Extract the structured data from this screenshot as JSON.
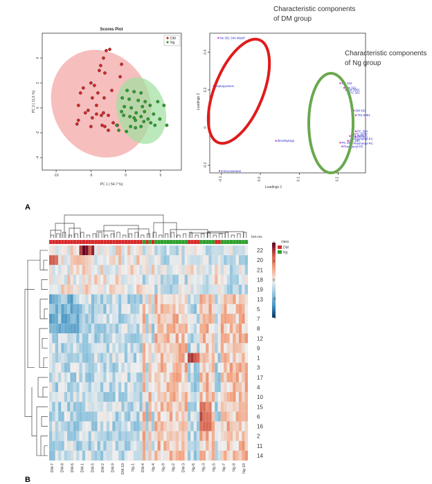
{
  "panel_labels": [
    "A",
    "B"
  ],
  "annotations": {
    "dm_group": [
      "Characteristic components",
      "of DM group"
    ],
    "ng_group": [
      "Characteristic components",
      "of Ng group"
    ]
  },
  "colors": {
    "dm": "#d62728",
    "ng": "#2ca02c",
    "ellipse_dm": "#f4a3a3",
    "ellipse_ng": "#9ee09e",
    "loading_point": "#cc33cc",
    "loading_text": "#2a2ad0",
    "circle_dm": "#e01b1b",
    "circle_ng": "#6aa84f"
  },
  "chart_data": [
    {
      "type": "scatter",
      "title": "Scores Plot",
      "xlabel": "PC 1 ( 54.7 %)",
      "ylabel": "PC 2 ( 11.6 %)",
      "xlim": [
        -12,
        8
      ],
      "ylim": [
        -5,
        6
      ],
      "xticks": [
        -10,
        -5,
        0,
        5
      ],
      "yticks": [
        -4,
        -2,
        0,
        2,
        4
      ],
      "legend": {
        "placement": "top-right",
        "entries": [
          "DM",
          "Ng"
        ]
      },
      "series": [
        {
          "name": "DM",
          "points": [
            [
              -2.8,
              4.6
            ],
            [
              -2.3,
              4.7
            ],
            [
              -3.2,
              4.0
            ],
            [
              -0.6,
              3.5
            ],
            [
              -3.6,
              3.4
            ],
            [
              -3.8,
              3.0
            ],
            [
              -3.0,
              2.8
            ],
            [
              -0.8,
              2.5
            ],
            [
              -5.0,
              2.0
            ],
            [
              -4.5,
              1.8
            ],
            [
              -6.1,
              1.6
            ],
            [
              -6.5,
              1.2
            ],
            [
              -4.0,
              1.2
            ],
            [
              -2.0,
              1.4
            ],
            [
              -3.1,
              0.8
            ],
            [
              -4.8,
              0.8
            ],
            [
              -6.8,
              0.2
            ],
            [
              -4.2,
              0.2
            ],
            [
              -5.4,
              -0.2
            ],
            [
              -4.2,
              -0.5
            ],
            [
              -5.8,
              -0.4
            ],
            [
              -4.8,
              -0.8
            ],
            [
              -2.5,
              -0.6
            ],
            [
              -3.5,
              -0.6
            ],
            [
              -3.2,
              -0.4
            ],
            [
              -6.8,
              -1.0
            ],
            [
              -7.0,
              -1.3
            ],
            [
              -5.0,
              -1.5
            ],
            [
              -3.0,
              -1.5
            ],
            [
              -3.4,
              -1.4
            ],
            [
              -1.8,
              -1.2
            ],
            [
              -1.2,
              -1.4
            ],
            [
              -2.5,
              -1.8
            ]
          ]
        },
        {
          "name": "Ng",
          "points": [
            [
              0.2,
              1.4
            ],
            [
              1.2,
              1.3
            ],
            [
              2.2,
              1.2
            ],
            [
              -0.5,
              0.8
            ],
            [
              0.5,
              0.7
            ],
            [
              1.8,
              0.6
            ],
            [
              2.8,
              0.5
            ],
            [
              4.6,
              0.5
            ],
            [
              -0.2,
              0.1
            ],
            [
              0.8,
              0.0
            ],
            [
              2.4,
              0.1
            ],
            [
              3.5,
              0.2
            ],
            [
              5.5,
              0.2
            ],
            [
              -0.6,
              -0.3
            ],
            [
              1.5,
              -0.4
            ],
            [
              2.7,
              -0.3
            ],
            [
              4.0,
              -0.5
            ],
            [
              -0.3,
              -0.6
            ],
            [
              0.6,
              -0.7
            ],
            [
              1.2,
              -0.8
            ],
            [
              2.2,
              -0.7
            ],
            [
              3.2,
              -0.9
            ],
            [
              4.9,
              -0.9
            ],
            [
              1.4,
              -1.0
            ],
            [
              2.6,
              -1.1
            ],
            [
              3.6,
              -1.2
            ],
            [
              4.2,
              -1.4
            ],
            [
              5.9,
              -1.4
            ],
            [
              0.7,
              -1.5
            ],
            [
              1.4,
              -1.6
            ],
            [
              2.2,
              -1.5
            ],
            [
              0.1,
              -1.9
            ],
            [
              -1.3,
              -1.4
            ],
            [
              -1.0,
              -1.8
            ]
          ]
        }
      ]
    },
    {
      "type": "scatter",
      "title": "",
      "xlabel": "Loadings 1",
      "ylabel": "Loadings 2",
      "xlim": [
        -0.13,
        0.27
      ],
      "ylim": [
        -0.24,
        0.5
      ],
      "xticks": [
        -0.1,
        0.0,
        0.1,
        0.2
      ],
      "xtick_labels": [
        "-0.1",
        "0.0",
        "0.1",
        "0.2"
      ],
      "yticks": [
        -0.2,
        0.0,
        0.2,
        0.4
      ],
      "points": [
        {
          "x": -0.108,
          "y": 0.475,
          "label": "Ne 301 344 MissP"
        },
        {
          "x": -0.12,
          "y": 0.22,
          "label": "heptopyranos"
        },
        {
          "x": 0.04,
          "y": -0.07,
          "label": "dimethylargi"
        },
        {
          "x": -0.105,
          "y": -0.23,
          "label": "6-Docosenami"
        },
        {
          "x": 0.205,
          "y": 0.235,
          "label": "PC 342"
        },
        {
          "x": 0.215,
          "y": 0.21,
          "label": "SM 321"
        },
        {
          "x": 0.22,
          "y": 0.2,
          "label": "SM 3901"
        },
        {
          "x": 0.225,
          "y": 0.185,
          "label": "PC 301"
        },
        {
          "x": 0.24,
          "y": 0.09,
          "label": "SM 402"
        },
        {
          "x": 0.245,
          "y": 0.065,
          "label": "761.5961"
        },
        {
          "x": 0.245,
          "y": -0.02,
          "label": "PC 364"
        },
        {
          "x": 0.24,
          "y": -0.035,
          "label": "PC 6560"
        },
        {
          "x": 0.23,
          "y": -0.045,
          "label": "SM 2008"
        },
        {
          "x": 0.245,
          "y": -0.05,
          "label": "PC 362"
        },
        {
          "x": 0.235,
          "y": -0.06,
          "label": "Plasmenyl-PC"
        },
        {
          "x": 0.225,
          "y": -0.07,
          "label": "PC 181"
        },
        {
          "x": 0.205,
          "y": -0.08,
          "label": "PC 368"
        },
        {
          "x": 0.235,
          "y": -0.085,
          "label": "Plasmenyl-PC"
        },
        {
          "x": 0.21,
          "y": -0.1,
          "label": "Plasmenyl-PE"
        }
      ]
    },
    {
      "type": "heatmap",
      "legend_title": "class",
      "legend_entries": [
        "DM",
        "Ng"
      ],
      "row_header": "Ion no.",
      "scale_ticks": [
        4,
        2,
        0,
        -2,
        -4
      ],
      "rows": [
        "22",
        "20",
        "21",
        "18",
        "19",
        "13",
        "5",
        "7",
        "8",
        "12",
        "9",
        "1",
        "3",
        "17",
        "4",
        "10",
        "15",
        "6",
        "16",
        "2",
        "11",
        "14"
      ],
      "column_labels": [
        "DM-7",
        "DM-8",
        "DM-6",
        "DM-1",
        "DM-5",
        "DM-2",
        "DM-9",
        "DM-10",
        "Ng-1",
        "DM-4",
        "Ng-4",
        "Ng-9",
        "Ng-2",
        "DM-3",
        "Ng-6",
        "Ng-3",
        "Ng-5",
        "Ng-7",
        "Ng-8",
        "Ng-10"
      ],
      "n_columns": 66,
      "class_columns": {
        "DM_count": 41,
        "Ng_count": 25
      }
    }
  ]
}
